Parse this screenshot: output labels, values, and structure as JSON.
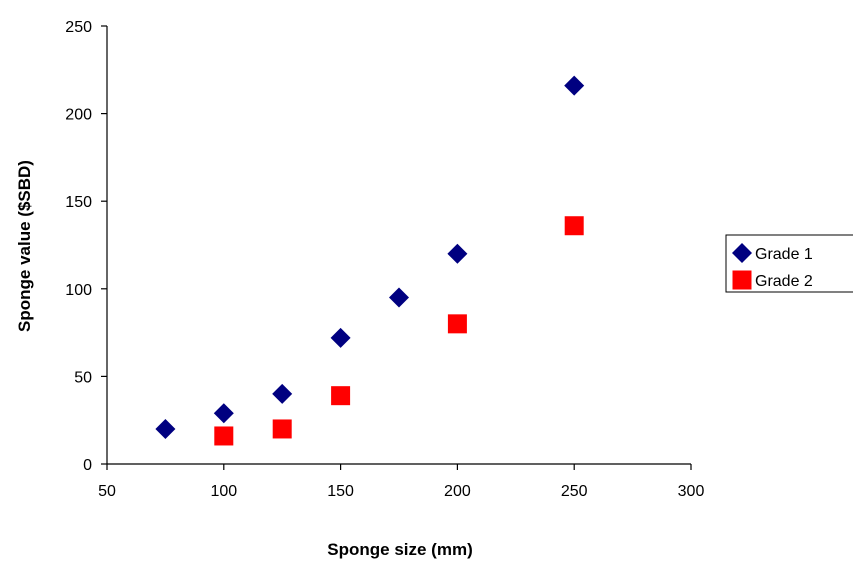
{
  "chart_data": {
    "type": "scatter",
    "xlabel": "Sponge size (mm)",
    "ylabel": "Sponge value ($SBD)",
    "xlim": [
      50,
      300
    ],
    "ylim": [
      0,
      250
    ],
    "xticks": [
      "50",
      "100",
      "150",
      "200",
      "250",
      "300"
    ],
    "yticks": [
      "0",
      "50",
      "100",
      "150",
      "200",
      "250"
    ],
    "grid": false,
    "legend_position": "right",
    "series": [
      {
        "name": "Grade 1",
        "marker": "diamond",
        "color": "#000080",
        "points": [
          {
            "x": 75,
            "y": 20
          },
          {
            "x": 100,
            "y": 29
          },
          {
            "x": 125,
            "y": 40
          },
          {
            "x": 150,
            "y": 72
          },
          {
            "x": 175,
            "y": 95
          },
          {
            "x": 200,
            "y": 120
          },
          {
            "x": 250,
            "y": 216
          }
        ]
      },
      {
        "name": "Grade 2",
        "marker": "square",
        "color": "#ff0000",
        "points": [
          {
            "x": 100,
            "y": 16
          },
          {
            "x": 125,
            "y": 20
          },
          {
            "x": 150,
            "y": 39
          },
          {
            "x": 200,
            "y": 80
          },
          {
            "x": 250,
            "y": 136
          }
        ]
      }
    ]
  }
}
